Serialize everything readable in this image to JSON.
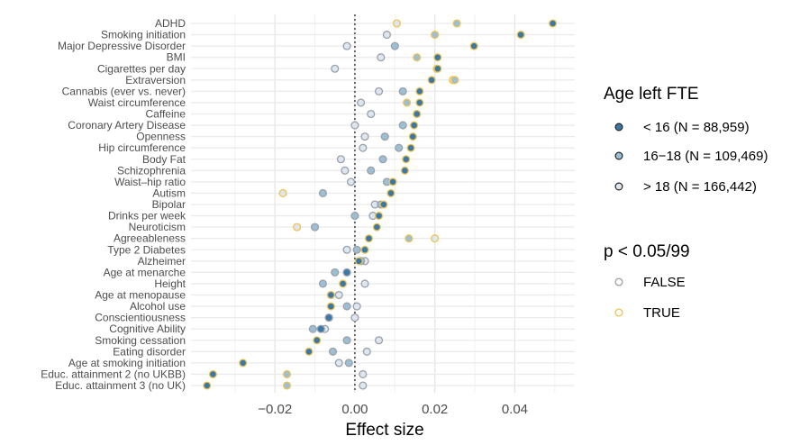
{
  "chart_data": {
    "type": "scatter",
    "xlabel": "Effect size",
    "ylabel": "",
    "xlim": [
      -0.041,
      0.055
    ],
    "x_ticks": [
      "−0.02",
      "0.00",
      "0.02",
      "0.04"
    ],
    "x_tick_values": [
      -0.02,
      0.0,
      0.02,
      0.04
    ],
    "reference_line": 0,
    "grid": true,
    "legend_position": "right",
    "categories": [
      "ADHD",
      "Smoking initiation",
      "Major Depressive Disorder",
      "BMI",
      "Cigarettes per day",
      "Extraversion",
      "Cannabis (ever vs. never)",
      "Waist circumference",
      "Caffeine",
      "Coronary Artery Disease",
      "Openness",
      "Hip circumference",
      "Body Fat",
      "Schizophrenia",
      "Waist–hip ratio",
      "Autism",
      "Bipolar",
      "Drinks per week",
      "Neuroticism",
      "Agreeableness",
      "Type 2 Diabetes",
      "Alzheimer",
      "Age at menarche",
      "Height",
      "Age at menopause",
      "Alcohol use",
      "Conscientiousness",
      "Cognitive Ability",
      "Smoking cessation",
      "Eating disorder",
      "Age at smoking initiation",
      "Educ. attainment 2 (no UKBB)",
      "Educ. attainment 3 (no UK)"
    ],
    "series": [
      {
        "name": "< 16 (N = 88,959)",
        "color": "#3a78a8",
        "values": [
          0.0495,
          0.0415,
          0.0298,
          0.0207,
          0.0207,
          0.0192,
          0.0162,
          0.0162,
          0.0155,
          0.0148,
          0.0145,
          0.014,
          0.0128,
          0.0125,
          0.0095,
          0.009,
          0.0072,
          0.006,
          0.0055,
          0.0035,
          0.0025,
          0.001,
          -0.002,
          -0.003,
          -0.006,
          -0.006,
          -0.0065,
          -0.0085,
          -0.0095,
          -0.0115,
          -0.028,
          -0.0355,
          -0.037
        ],
        "significant": [
          true,
          true,
          true,
          true,
          true,
          true,
          true,
          true,
          true,
          true,
          true,
          true,
          true,
          true,
          true,
          true,
          true,
          true,
          true,
          true,
          true,
          true,
          false,
          true,
          true,
          true,
          false,
          false,
          true,
          true,
          true,
          true,
          true
        ]
      },
      {
        "name": "16–18 (N = 109,469)",
        "color": "#9cbfd6",
        "values": [
          0.0255,
          0.02,
          0.01,
          0.0155,
          0.0205,
          0.025,
          0.012,
          0.013,
          0.0155,
          0.012,
          0.0075,
          0.011,
          0.007,
          0.004,
          0.008,
          -0.008,
          0.0065,
          0.0,
          -0.01,
          0.0135,
          0.0005,
          0.0015,
          -0.005,
          -0.008,
          -0.006,
          -0.002,
          -0.0065,
          -0.0105,
          -0.002,
          -0.0055,
          -0.0015,
          -0.017,
          -0.017
        ],
        "significant": [
          true,
          true,
          false,
          true,
          true,
          true,
          false,
          true,
          false,
          false,
          false,
          false,
          false,
          false,
          false,
          false,
          false,
          false,
          false,
          true,
          false,
          false,
          false,
          false,
          false,
          false,
          false,
          false,
          false,
          false,
          false,
          true,
          true
        ]
      },
      {
        "name": "> 18 (N = 166,442)",
        "color": "#dde7f2",
        "values": [
          0.0105,
          0.008,
          -0.002,
          0.0065,
          -0.005,
          0.0245,
          0.006,
          0.0015,
          0.004,
          0.0,
          0.0025,
          0.002,
          -0.0035,
          -0.0025,
          -0.001,
          -0.018,
          0.005,
          0.0045,
          -0.0145,
          0.02,
          -0.002,
          0.0025,
          -0.002,
          0.0025,
          -0.004,
          0.0005,
          0.0,
          -0.0075,
          0.006,
          0.003,
          -0.004,
          0.002,
          0.002
        ],
        "significant": [
          true,
          false,
          false,
          false,
          false,
          true,
          false,
          false,
          false,
          false,
          false,
          false,
          false,
          false,
          false,
          true,
          false,
          false,
          true,
          true,
          false,
          false,
          false,
          false,
          false,
          false,
          false,
          false,
          false,
          false,
          false,
          false,
          false
        ]
      }
    ],
    "legend": {
      "fill_title": "Age left FTE",
      "fill_entries": [
        "< 16 (N = 88,959)",
        "16−18 (N = 109,469)",
        "> 18 (N = 166,442)"
      ],
      "outline_title": "p < 0.05/99",
      "outline_entries": [
        "FALSE",
        "TRUE"
      ],
      "outline_colors": [
        "#9aa0a8",
        "#f0c24e"
      ]
    }
  }
}
